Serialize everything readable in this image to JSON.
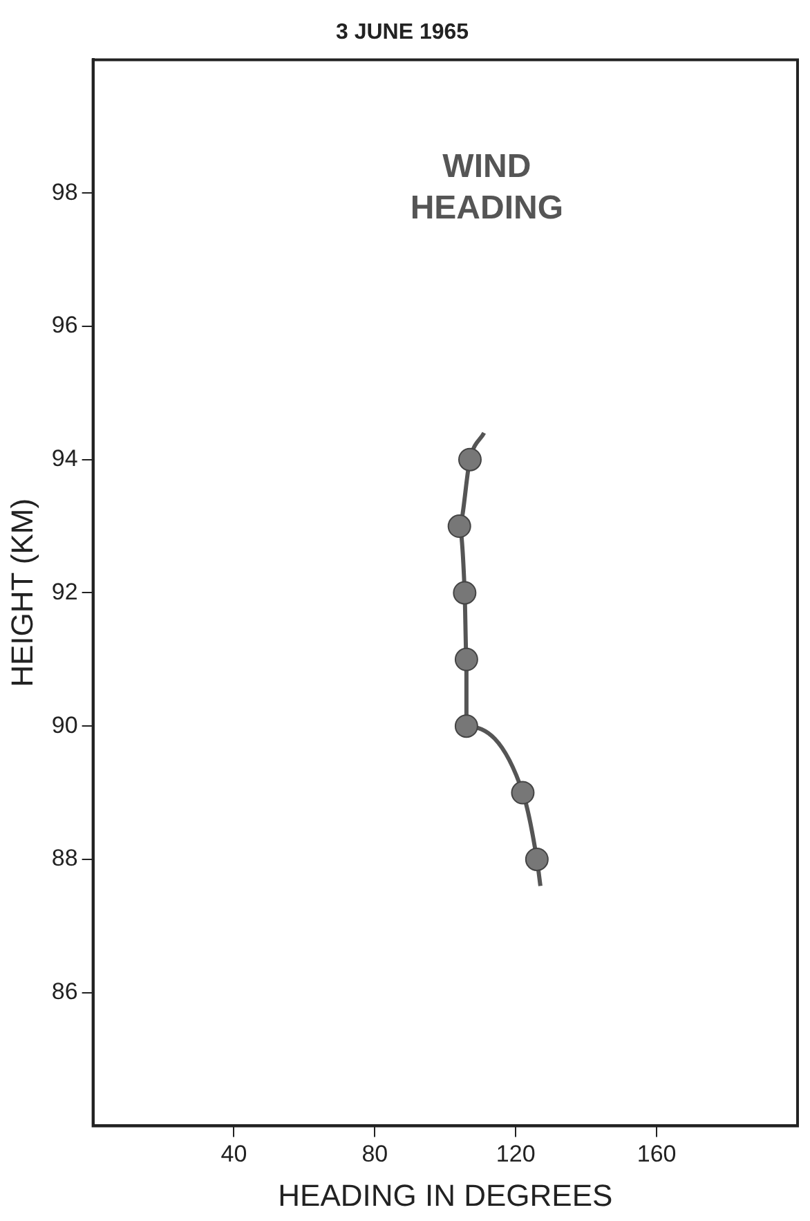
{
  "chart_data": {
    "type": "scatter",
    "title": "3 JUNE 1965",
    "xlabel": "HEADING IN DEGREES",
    "ylabel": "HEIGHT (KM)",
    "annotations": [
      "WIND HEADING"
    ],
    "xlim": [
      0,
      200
    ],
    "xticks": [
      40,
      80,
      120,
      160
    ],
    "ylim": [
      84,
      100
    ],
    "yticks": [
      86,
      88,
      90,
      92,
      94,
      96,
      98
    ],
    "grid": false,
    "legend": false,
    "series": [
      {
        "type": "line",
        "color": "#555555",
        "marker": "none",
        "x": [
          111,
          107,
          104,
          105.5,
          106,
          106,
          122,
          126,
          127
        ],
        "values": [
          94.4,
          94,
          93,
          92,
          91,
          90,
          89,
          88,
          87.6
        ]
      },
      {
        "type": "scatter",
        "color": "#777777",
        "marker": "circle",
        "x": [
          107,
          104,
          105.5,
          106,
          106,
          122,
          126
        ],
        "values": [
          94,
          93,
          92,
          91,
          90,
          89,
          88
        ]
      }
    ]
  }
}
